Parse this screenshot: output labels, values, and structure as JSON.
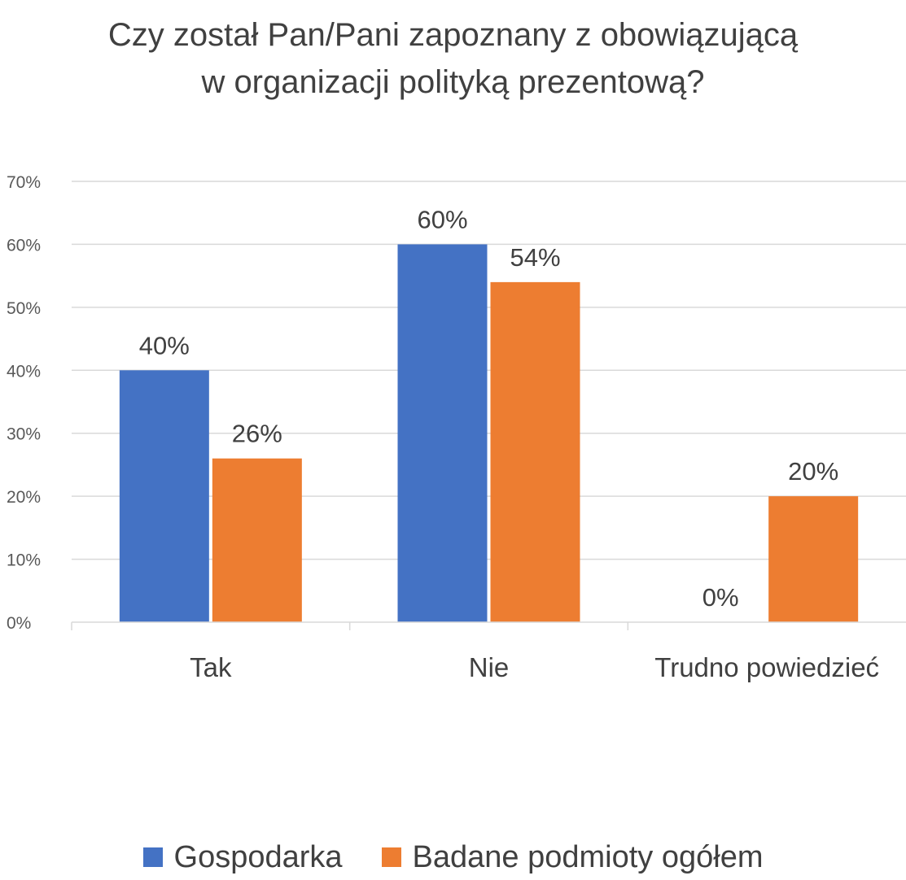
{
  "chart_data": {
    "type": "bar",
    "title": "Czy został Pan/Pani zapoznany z obowiązującą w organizacji polityką prezentową?",
    "title_lines": [
      "Czy został Pan/Pani zapoznany z obowiązującą",
      "w organizacji polityką prezentową?"
    ],
    "categories": [
      "Tak",
      "Nie",
      "Trudno powiedzieć"
    ],
    "series": [
      {
        "name": "Gospodarka",
        "color": "#4472C4",
        "values": [
          40,
          60,
          0
        ],
        "labels": [
          "40%",
          "60%",
          "0%"
        ]
      },
      {
        "name": "Badane podmioty ogółem",
        "color": "#ED7D31",
        "values": [
          26,
          54,
          20
        ],
        "labels": [
          "26%",
          "54%",
          "20%"
        ]
      }
    ],
    "ylim": [
      0,
      70
    ],
    "yticks": [
      0,
      10,
      20,
      30,
      40,
      50,
      60,
      70
    ],
    "ytick_labels": [
      "0%",
      "10%",
      "20%",
      "30%",
      "40%",
      "50%",
      "60%",
      "70%"
    ],
    "grid": true,
    "legend_position": "bottom"
  }
}
